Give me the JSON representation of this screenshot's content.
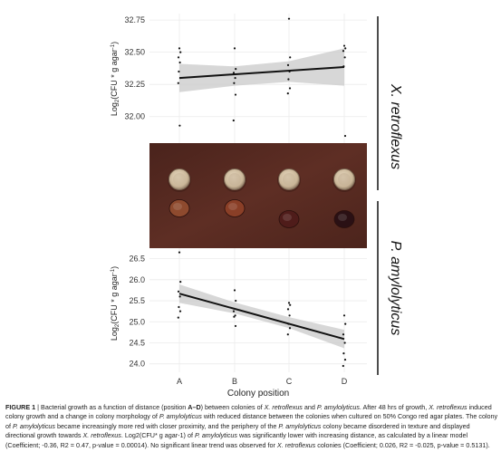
{
  "chart_data": [
    {
      "type": "scatter",
      "panel": "X. retroflexus",
      "title": "",
      "side_label_prefix": "X.",
      "side_label_name": "retroflexus",
      "ylabel": "Log2(CFU * g agar-1)",
      "ylabel_main": "Log",
      "ylabel_sub": "2",
      "ylabel_rest": "(CFU * g agar",
      "ylabel_sup": "-1",
      "ylabel_end": ")",
      "ylim": [
        31.78,
        32.8
      ],
      "yticks": [
        "32.75",
        "32.50",
        "32.25",
        "32.00"
      ],
      "grid": true,
      "categories": [
        "A",
        "B",
        "C",
        "D"
      ],
      "points": [
        {
          "x": "A",
          "y": 32.53
        },
        {
          "x": "A",
          "y": 32.5
        },
        {
          "x": "A",
          "y": 32.46
        },
        {
          "x": "A",
          "y": 32.42
        },
        {
          "x": "A",
          "y": 32.35
        },
        {
          "x": "A",
          "y": 32.3
        },
        {
          "x": "A",
          "y": 32.26
        },
        {
          "x": "A",
          "y": 31.93
        },
        {
          "x": "B",
          "y": 32.53
        },
        {
          "x": "B",
          "y": 32.37
        },
        {
          "x": "B",
          "y": 32.34
        },
        {
          "x": "B",
          "y": 32.3
        },
        {
          "x": "B",
          "y": 32.26
        },
        {
          "x": "B",
          "y": 32.17
        },
        {
          "x": "B",
          "y": 31.97
        },
        {
          "x": "C",
          "y": 32.76
        },
        {
          "x": "C",
          "y": 32.46
        },
        {
          "x": "C",
          "y": 32.4
        },
        {
          "x": "C",
          "y": 32.35
        },
        {
          "x": "C",
          "y": 32.29
        },
        {
          "x": "C",
          "y": 32.22
        },
        {
          "x": "C",
          "y": 32.18
        },
        {
          "x": "D",
          "y": 32.55
        },
        {
          "x": "D",
          "y": 32.53
        },
        {
          "x": "D",
          "y": 32.51
        },
        {
          "x": "D",
          "y": 32.46
        },
        {
          "x": "D",
          "y": 32.39
        },
        {
          "x": "D",
          "y": 31.85
        }
      ],
      "fit": {
        "start": 32.3,
        "end": 32.385
      },
      "ci_band": [
        {
          "lo": 32.19,
          "hi": 32.41
        },
        {
          "lo": 32.24,
          "hi": 32.39
        },
        {
          "lo": 32.27,
          "hi": 32.43
        },
        {
          "lo": 32.24,
          "hi": 32.53
        }
      ]
    },
    {
      "type": "scatter",
      "panel": "P. amylolyticus",
      "title": "",
      "side_label_prefix": "P.",
      "side_label_name": "amylolyticus",
      "ylabel": "Log2(CFU * g agar-1)",
      "ylabel_main": "Log",
      "ylabel_sub": "2",
      "ylabel_rest": "(CFU * g agar",
      "ylabel_sup": "-1",
      "ylabel_end": ")",
      "ylim": [
        23.8,
        26.75
      ],
      "yticks": [
        "26.5",
        "26.0",
        "25.5",
        "25.0",
        "24.5",
        "24.0"
      ],
      "xlabel": "Colony position",
      "grid": true,
      "categories": [
        "A",
        "B",
        "C",
        "D"
      ],
      "points": [
        {
          "x": "A",
          "y": 26.65
        },
        {
          "x": "A",
          "y": 25.95
        },
        {
          "x": "A",
          "y": 25.72
        },
        {
          "x": "A",
          "y": 25.6
        },
        {
          "x": "A",
          "y": 25.35
        },
        {
          "x": "A",
          "y": 25.25
        },
        {
          "x": "A",
          "y": 25.1
        },
        {
          "x": "B",
          "y": 25.75
        },
        {
          "x": "B",
          "y": 25.5
        },
        {
          "x": "B",
          "y": 25.25
        },
        {
          "x": "B",
          "y": 25.15
        },
        {
          "x": "B",
          "y": 25.12
        },
        {
          "x": "B",
          "y": 24.9
        },
        {
          "x": "C",
          "y": 25.45
        },
        {
          "x": "C",
          "y": 25.4
        },
        {
          "x": "C",
          "y": 25.3
        },
        {
          "x": "C",
          "y": 25.15
        },
        {
          "x": "C",
          "y": 24.95
        },
        {
          "x": "C",
          "y": 24.85
        },
        {
          "x": "C",
          "y": 24.7
        },
        {
          "x": "D",
          "y": 25.15
        },
        {
          "x": "D",
          "y": 24.95
        },
        {
          "x": "D",
          "y": 24.7
        },
        {
          "x": "D",
          "y": 24.5
        },
        {
          "x": "D",
          "y": 24.25
        },
        {
          "x": "D",
          "y": 24.1
        },
        {
          "x": "D",
          "y": 23.95
        }
      ],
      "fit": {
        "start": 25.67,
        "end": 24.59
      },
      "ci_band": [
        {
          "lo": 25.45,
          "hi": 25.89
        },
        {
          "lo": 25.2,
          "hi": 25.46
        },
        {
          "lo": 24.85,
          "hi": 25.11
        },
        {
          "lo": 24.37,
          "hi": 24.81
        }
      ]
    }
  ],
  "photo": {
    "background": "#5a2d23",
    "colonies": [
      {
        "position": "A",
        "xretro_color": "#c9b79b",
        "pamy_color": "#8e4a2e"
      },
      {
        "position": "B",
        "xretro_color": "#c6b398",
        "pamy_color": "#8a3f27"
      },
      {
        "position": "C",
        "xretro_color": "#c7b497",
        "pamy_color": "#4f1c1a"
      },
      {
        "position": "D",
        "xretro_color": "#c4b196",
        "pamy_color": "#2a1014"
      }
    ]
  },
  "caption": {
    "label": "FIGURE 1",
    "sep": " | ",
    "s1": "Bacterial growth as a function of distance (position ",
    "s1b": "A–D",
    "s2": ") between colonies of ",
    "s2i": "X. retroflexus",
    "s3": " and ",
    "s3i": "P. amylolyticus",
    "s4": ". After 48 hrs of growth, ",
    "s4i": "X. retroflexus",
    "s5": " induced colony growth and a change in colony morphology of ",
    "s5i": "P. amylolyticus",
    "s6": " with reduced distance between the colonies when cultured on 50% Congo red agar plates. The colony of ",
    "s6i": "P. amylolyticus",
    "s7": " became increasingly more red with closer proximity, and the periphery of the ",
    "s7i": "P. amylolyticus",
    "s8": " colony became disordered in texture and displayed directional growth towards ",
    "s8i": "X. retroflexus",
    "s9": ". Log2(CFU* g agar-1) of ",
    "s9i": "P. amylolyticus",
    "s10": " was significantly lower with increasing distance, as calculated by a linear model (Coefficient; -0.36, R2 = 0.47, p-value = 0.00014). No significant linear trend was observed for ",
    "s10i": "X. retroflexus",
    "s11": " colonies (Coefficient; 0.026, R2 = -0.025, p-value = 0.5131)."
  }
}
